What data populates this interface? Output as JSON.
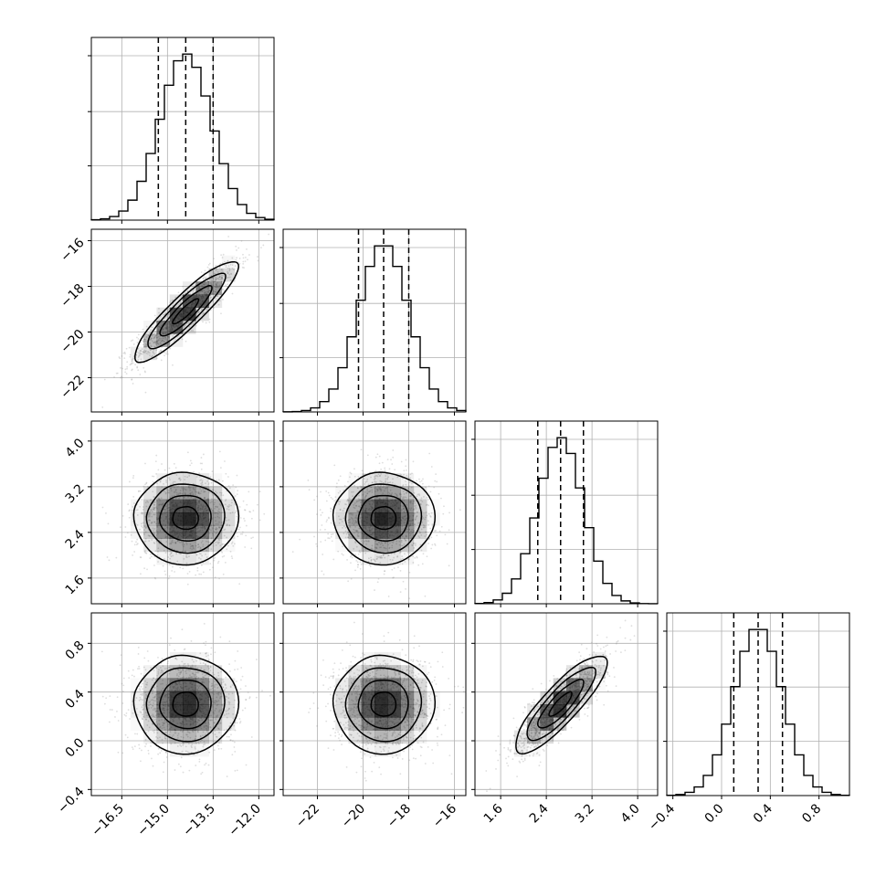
{
  "chart_data": {
    "type": "corner",
    "parameters": 4,
    "grid": true,
    "sample_scatter": true,
    "colors": {
      "line": "#000000",
      "grid": "#b0b0b0",
      "density": "#000000",
      "scatter": "#888888"
    },
    "axes": [
      {
        "index": 0,
        "range": [
          -17.5,
          -11.5
        ],
        "ticks": [
          -16.5,
          -15.0,
          -13.5,
          -12.0
        ],
        "tick_labels": [
          "−16.5",
          "−15.0",
          "−13.5",
          "−12.0"
        ],
        "mean": -14.4,
        "sd": 0.85,
        "quantiles": [
          -15.3,
          -14.4,
          -13.5
        ]
      },
      {
        "index": 1,
        "range": [
          -23.5,
          -15.5
        ],
        "ticks": [
          -22,
          -20,
          -18,
          -16
        ],
        "tick_labels": [
          "−22",
          "−20",
          "−18",
          "−16"
        ],
        "mean": -19.1,
        "sd": 1.1,
        "quantiles": [
          -20.2,
          -19.1,
          -18.0
        ]
      },
      {
        "index": 2,
        "range": [
          1.15,
          4.35
        ],
        "ticks": [
          1.6,
          2.4,
          3.2,
          4.0
        ],
        "tick_labels": [
          "1.6",
          "2.4",
          "3.2",
          "4.0"
        ],
        "mean": 2.65,
        "sd": 0.4,
        "quantiles": [
          2.25,
          2.65,
          3.05
        ]
      },
      {
        "index": 3,
        "range": [
          -0.45,
          1.05
        ],
        "ticks": [
          -0.4,
          0.0,
          0.4,
          0.8
        ],
        "tick_labels": [
          "−0.4",
          "0.0",
          "0.4",
          "0.8"
        ],
        "mean": 0.3,
        "sd": 0.2,
        "quantiles": [
          0.1,
          0.3,
          0.5
        ]
      }
    ],
    "correlations": [
      {
        "x": 0,
        "y": 1,
        "rho": 0.9
      },
      {
        "x": 0,
        "y": 2,
        "rho": 0.0
      },
      {
        "x": 1,
        "y": 2,
        "rho": 0.0
      },
      {
        "x": 0,
        "y": 3,
        "rho": 0.0
      },
      {
        "x": 1,
        "y": 3,
        "rho": 0.0
      },
      {
        "x": 2,
        "y": 3,
        "rho": 0.85
      }
    ],
    "contour_levels_sigma": [
      0.5,
      1.0,
      1.5,
      2.0
    ]
  }
}
